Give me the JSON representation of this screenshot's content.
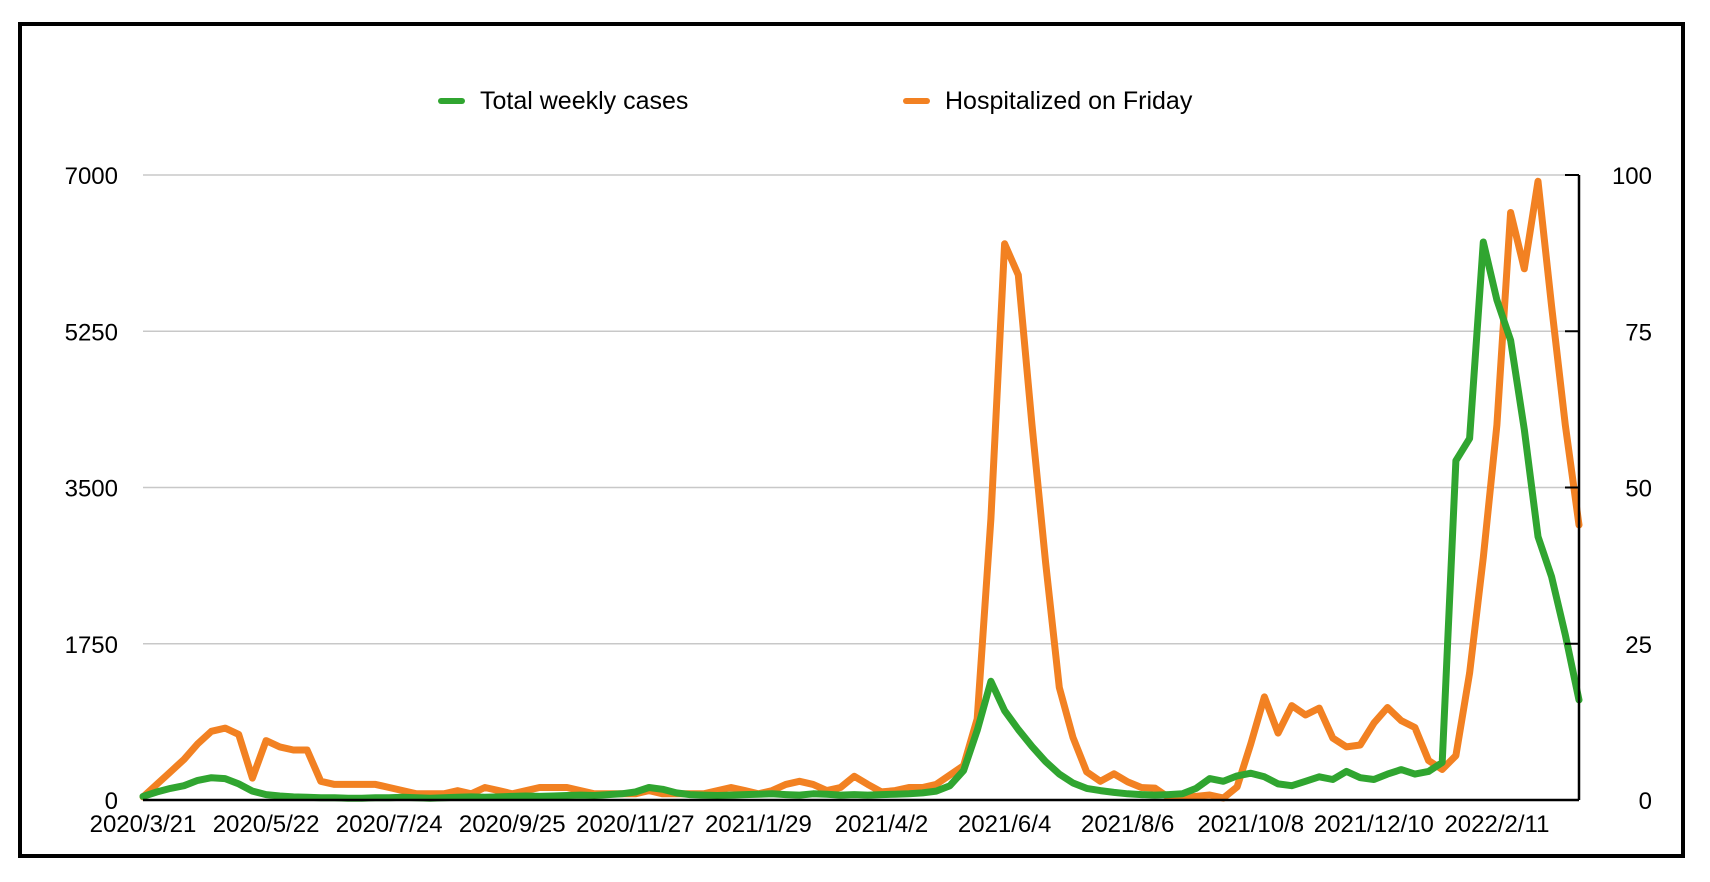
{
  "legend": {
    "items": [
      {
        "label": "Total weekly cases",
        "color": "#30a530"
      },
      {
        "label": "Hospitalized on Friday",
        "color": "#f28122"
      }
    ]
  },
  "chart_data": {
    "type": "line",
    "title": "",
    "x_unit": "weeks starting 2020/3/21",
    "x_tick_labels": [
      {
        "week": 0,
        "label": "2020/3/21"
      },
      {
        "week": 9,
        "label": "2020/5/22"
      },
      {
        "week": 18,
        "label": "2020/7/24"
      },
      {
        "week": 27,
        "label": "2020/9/25"
      },
      {
        "week": 36,
        "label": "2020/11/27"
      },
      {
        "week": 45,
        "label": "2021/1/29"
      },
      {
        "week": 54,
        "label": "2021/4/2"
      },
      {
        "week": 63,
        "label": "2021/6/4"
      },
      {
        "week": 72,
        "label": "2021/8/6"
      },
      {
        "week": 81,
        "label": "2021/10/8"
      },
      {
        "week": 90,
        "label": "2021/12/10"
      },
      {
        "week": 99,
        "label": "2022/2/11"
      }
    ],
    "left_axis": {
      "max": 7000,
      "ticks": [
        0,
        1750,
        3500,
        5250,
        7000
      ],
      "tick_labels": [
        "0",
        "1750",
        "3500",
        "5250",
        "7000"
      ]
    },
    "right_axis": {
      "max": 100,
      "ticks": [
        0,
        25,
        50,
        75,
        100
      ],
      "tick_labels": [
        "0",
        "25",
        "50",
        "75",
        "100"
      ]
    },
    "grid_on": true,
    "grid_color": "#c8c8c8",
    "axis_color": "#000000",
    "legend_position": "top",
    "series": [
      {
        "name": "Total weekly cases",
        "axis": "left",
        "color": "#30a530",
        "values": [
          40,
          90,
          130,
          160,
          220,
          250,
          240,
          180,
          100,
          60,
          45,
          35,
          30,
          25,
          25,
          20,
          20,
          25,
          25,
          30,
          25,
          20,
          25,
          30,
          35,
          30,
          35,
          40,
          45,
          40,
          45,
          50,
          55,
          50,
          60,
          70,
          90,
          140,
          120,
          80,
          60,
          55,
          50,
          55,
          60,
          65,
          70,
          60,
          55,
          70,
          65,
          55,
          60,
          55,
          60,
          65,
          70,
          80,
          100,
          160,
          330,
          780,
          1330,
          1000,
          790,
          600,
          430,
          290,
          190,
          130,
          105,
          85,
          70,
          60,
          55,
          60,
          70,
          130,
          240,
          210,
          270,
          300,
          260,
          180,
          160,
          210,
          260,
          230,
          320,
          250,
          230,
          290,
          340,
          290,
          320,
          420,
          3800,
          4050,
          6250,
          5600,
          5150,
          4150,
          2950,
          2500,
          1850,
          1120
        ]
      },
      {
        "name": "Hospitalized on Friday",
        "axis": "right",
        "color": "#f28122",
        "values": [
          0.5,
          2.5,
          4.5,
          6.5,
          9,
          11,
          11.5,
          10.5,
          3.5,
          9.5,
          8.5,
          8,
          8,
          3,
          2.5,
          2.5,
          2.5,
          2.5,
          2,
          1.5,
          1,
          1,
          1,
          1.5,
          1,
          2,
          1.5,
          1,
          1.5,
          2,
          2,
          2,
          1.5,
          1,
          1,
          1,
          1,
          1.5,
          1,
          1,
          1,
          1,
          1.5,
          2,
          1.5,
          1,
          1.5,
          2.5,
          3,
          2.5,
          1.5,
          2,
          3.8,
          2.5,
          1.3,
          1.5,
          2,
          2,
          2.5,
          4,
          5.5,
          13,
          45,
          89,
          84,
          60,
          38,
          18,
          10,
          4.5,
          3,
          4.2,
          2.9,
          2,
          1.9,
          0.4,
          0.4,
          0.6,
          0.8,
          0.3,
          2.1,
          9,
          16.5,
          10.7,
          15.1,
          13.6,
          14.7,
          9.9,
          8.5,
          8.8,
          12.3,
          14.8,
          12.7,
          11.6,
          6.3,
          4.9,
          7.1,
          20.3,
          38.8,
          60,
          94,
          85,
          99,
          79,
          60,
          44
        ]
      }
    ]
  }
}
